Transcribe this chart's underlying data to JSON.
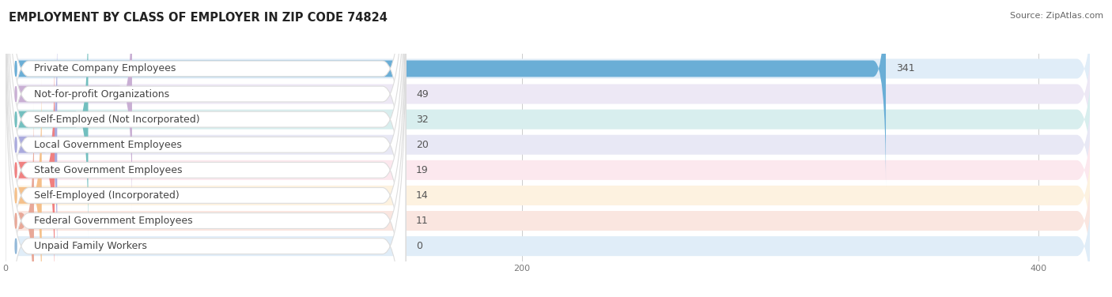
{
  "title": "EMPLOYMENT BY CLASS OF EMPLOYER IN ZIP CODE 74824",
  "source": "Source: ZipAtlas.com",
  "categories": [
    "Private Company Employees",
    "Not-for-profit Organizations",
    "Self-Employed (Not Incorporated)",
    "Local Government Employees",
    "State Government Employees",
    "Self-Employed (Incorporated)",
    "Federal Government Employees",
    "Unpaid Family Workers"
  ],
  "values": [
    341,
    49,
    32,
    20,
    19,
    14,
    11,
    0
  ],
  "bar_colors": [
    "#6aaed6",
    "#c9afd4",
    "#72bfbf",
    "#aaaadd",
    "#f08080",
    "#f5c08a",
    "#e8a898",
    "#92b8d8"
  ],
  "bar_bg_colors": [
    "#e0edf8",
    "#ede8f5",
    "#d8eeee",
    "#e8e8f5",
    "#fce8ee",
    "#fdf2e0",
    "#fae6e0",
    "#e0edf8"
  ],
  "row_bg_color": "#e8e8e8",
  "white_bg": "#ffffff",
  "xlim_max": 420,
  "xticks": [
    0,
    200,
    400
  ],
  "title_fontsize": 10.5,
  "source_fontsize": 8,
  "label_fontsize": 9,
  "value_fontsize": 9,
  "bg_color": "#ffffff"
}
